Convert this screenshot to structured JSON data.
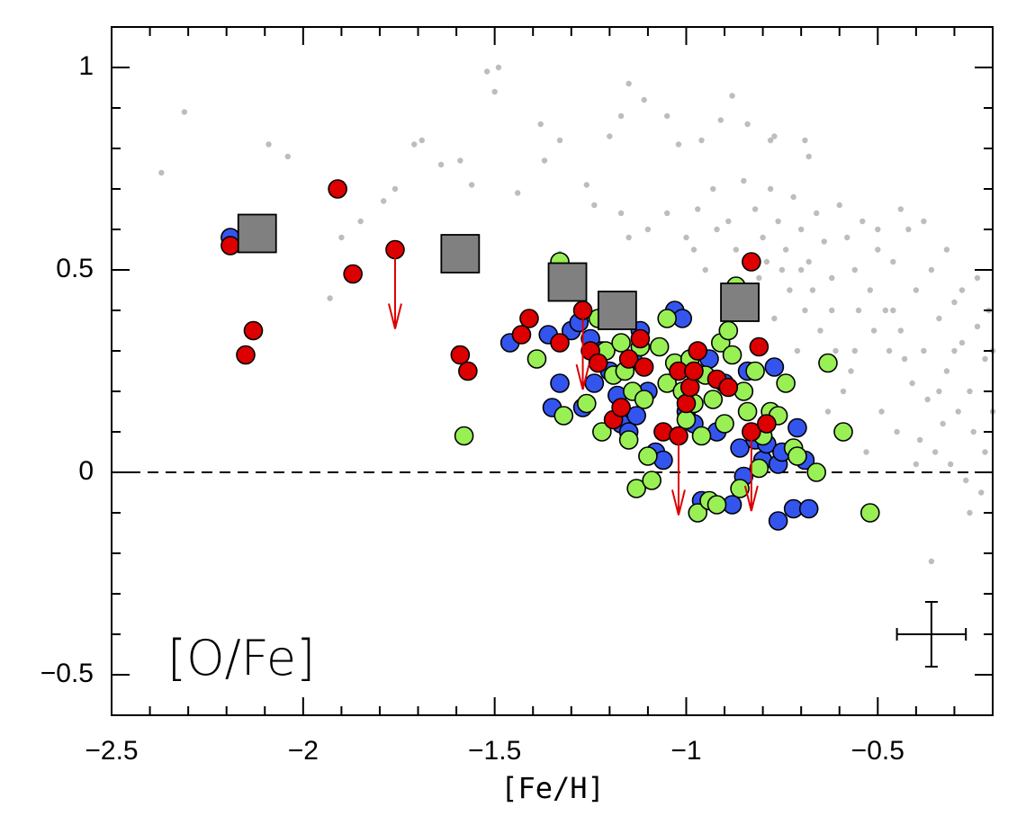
{
  "chart_data": {
    "type": "scatter",
    "xlabel": "[Fe/H]",
    "annotation": "[O/Fe]",
    "xlim": [
      -2.5,
      -0.2
    ],
    "ylim": [
      -0.6,
      1.1
    ],
    "xticks": [
      {
        "value": -2.5,
        "label": "−2.5"
      },
      {
        "value": -2,
        "label": "−2"
      },
      {
        "value": -1.5,
        "label": "−1.5"
      },
      {
        "value": -1,
        "label": "−1"
      },
      {
        "value": -0.5,
        "label": "−0.5"
      }
    ],
    "yticks": [
      {
        "value": -0.5,
        "label": "−0.5"
      },
      0,
      0.5,
      1
    ],
    "xminorticks": [
      -2.4,
      -2.3,
      -2.2,
      -2.1,
      -1.9,
      -1.8,
      -1.7,
      -1.6,
      -1.4,
      -1.3,
      -1.2,
      -1.1,
      -0.9,
      -0.8,
      -0.7,
      -0.6,
      -0.4,
      -0.3
    ],
    "yminorticks": [
      -0.4,
      -0.3,
      -0.2,
      -0.1,
      0.1,
      0.2,
      0.3,
      0.4,
      0.6,
      0.7,
      0.8,
      0.9
    ],
    "hline": 0,
    "series": [
      {
        "marker": "dot",
        "color": "#bdbdbd",
        "x": [
          -2.37,
          -2.31,
          -2.09,
          -2.04,
          -1.93,
          -1.9,
          -1.85,
          -1.79,
          -1.76,
          -1.71,
          -1.69,
          -1.64,
          -1.59,
          -1.56,
          -1.52,
          -1.49,
          -1.5,
          -1.44,
          -1.38,
          -1.37,
          -1.33,
          -1.26,
          -1.24,
          -1.2,
          -1.17,
          -1.15,
          -1.11,
          -1.05,
          -1.02,
          -0.96,
          -0.91,
          -0.88,
          -0.84,
          -0.78,
          -0.77,
          -0.69,
          -0.68,
          -1.33,
          -1.17,
          -1.15,
          -1.1,
          -1.05,
          -0.85,
          -0.82,
          -0.8,
          -0.78,
          -0.76,
          -0.74,
          -0.72,
          -0.7,
          -0.68,
          -0.66,
          -0.64,
          -0.62,
          -0.6,
          -0.58,
          -0.56,
          -0.54,
          -0.52,
          -0.5,
          -0.48,
          -0.46,
          -0.44,
          -0.42,
          -0.4,
          -0.38,
          -0.36,
          -0.34,
          -0.32,
          -0.3,
          -0.28,
          -0.26,
          -0.24,
          -0.22,
          -0.2,
          -0.21,
          -0.25,
          -0.29,
          -0.33,
          -0.37,
          -0.41,
          -0.45,
          -0.49,
          -0.53,
          -0.57,
          -0.61,
          -0.65,
          -0.69,
          -0.73,
          -0.77,
          -0.81,
          -0.87,
          -0.92,
          -0.95,
          -0.98,
          -0.35,
          -0.31,
          -0.27,
          -0.23,
          -0.22,
          -0.39,
          -0.43,
          -0.47,
          -0.51,
          -0.55,
          -0.59,
          -0.63,
          -0.67,
          -0.71,
          -0.75,
          -0.79,
          -0.83,
          -0.89,
          -0.93,
          -0.97,
          -1.0,
          -0.36,
          -0.26,
          -0.2,
          -0.24,
          -0.28,
          -0.32,
          -0.38,
          -0.44,
          -0.5,
          -0.4,
          -0.3,
          -0.34,
          -0.46,
          -0.56,
          -0.62,
          -0.7
        ],
        "y": [
          0.74,
          0.89,
          0.81,
          0.78,
          0.43,
          0.58,
          0.62,
          0.67,
          0.7,
          0.81,
          0.82,
          0.76,
          0.77,
          0.71,
          0.99,
          1.0,
          0.94,
          0.69,
          0.86,
          0.77,
          0.82,
          0.71,
          0.66,
          0.83,
          0.88,
          0.96,
          0.92,
          0.88,
          0.81,
          0.82,
          0.87,
          0.93,
          0.86,
          0.82,
          0.83,
          0.82,
          0.78,
          0.54,
          0.64,
          0.58,
          0.6,
          0.64,
          0.72,
          0.65,
          0.58,
          0.7,
          0.62,
          0.55,
          0.68,
          0.6,
          0.52,
          0.64,
          0.57,
          0.48,
          0.66,
          0.58,
          0.5,
          0.62,
          0.45,
          0.55,
          0.4,
          0.52,
          0.35,
          0.6,
          0.45,
          0.3,
          0.5,
          0.38,
          0.25,
          0.42,
          0.32,
          0.2,
          0.36,
          0.28,
          0.15,
          0.4,
          0.1,
          0.15,
          0.12,
          0.18,
          0.22,
          0.1,
          0.15,
          0.05,
          0.25,
          0.3,
          0.35,
          0.4,
          0.45,
          0.38,
          0.48,
          0.55,
          0.6,
          0.5,
          0.55,
          0.05,
          0.02,
          -0.02,
          -0.05,
          0.05,
          0.08,
          0.28,
          0.3,
          0.35,
          0.4,
          0.2,
          0.15,
          0.45,
          0.3,
          0.5,
          0.52,
          0.4,
          0.62,
          0.7,
          0.65,
          0.58,
          -0.22,
          -0.1,
          0.3,
          0.48,
          0.45,
          0.55,
          0.62,
          0.65,
          0.6,
          0.02,
          0.3,
          0.2,
          0.4,
          0.3,
          0.4,
          0.5
        ]
      },
      {
        "marker": "circle",
        "color": "#3355ee",
        "x": [
          -2.19,
          -1.46,
          -1.35,
          -1.33,
          -1.3,
          -1.28,
          -1.25,
          -1.22,
          -1.2,
          -1.18,
          -1.17,
          -1.15,
          -1.13,
          -1.12,
          -1.1,
          -1.08,
          -1.06,
          -1.03,
          -1.01,
          -1.0,
          -0.98,
          -0.96,
          -0.94,
          -0.92,
          -0.9,
          -0.88,
          -0.86,
          -0.85,
          -0.84,
          -0.82,
          -0.8,
          -0.79,
          -0.77,
          -0.76,
          -0.75,
          -0.72,
          -0.71,
          -0.69,
          -0.68,
          -0.76,
          -1.36,
          -1.24,
          -1.27,
          -1.14
        ],
        "y": [
          0.58,
          0.32,
          0.16,
          0.22,
          0.35,
          0.37,
          0.33,
          0.3,
          0.25,
          0.19,
          0.12,
          0.1,
          0.14,
          0.35,
          0.2,
          0.05,
          0.03,
          0.4,
          0.38,
          0.15,
          0.12,
          -0.07,
          0.28,
          0.1,
          0.22,
          -0.08,
          0.06,
          -0.01,
          0.25,
          0.08,
          0.03,
          0.07,
          0.26,
          0.02,
          0.05,
          -0.09,
          0.11,
          0.03,
          -0.09,
          -0.12,
          0.34,
          0.22,
          0.16,
          0.28
        ]
      },
      {
        "marker": "circle",
        "color": "#99f055",
        "x": [
          -1.58,
          -1.39,
          -1.33,
          -1.32,
          -1.26,
          -1.23,
          -1.21,
          -1.19,
          -1.17,
          -1.15,
          -1.14,
          -1.13,
          -1.11,
          -1.09,
          -1.1,
          -1.07,
          -1.05,
          -1.03,
          -1.01,
          -1.0,
          -0.99,
          -0.98,
          -0.97,
          -0.96,
          -0.95,
          -0.94,
          -0.93,
          -0.92,
          -0.91,
          -0.9,
          -0.89,
          -0.88,
          -0.87,
          -0.86,
          -0.85,
          -0.84,
          -0.82,
          -0.81,
          -0.8,
          -0.78,
          -0.76,
          -0.74,
          -0.72,
          -0.71,
          -0.66,
          -0.63,
          -0.59,
          -0.52,
          -1.12,
          -1.05,
          -1.22,
          -1.16
        ],
        "y": [
          0.09,
          0.28,
          0.52,
          0.14,
          0.17,
          0.38,
          0.3,
          0.24,
          0.32,
          0.08,
          0.2,
          -0.04,
          0.18,
          -0.02,
          0.04,
          0.31,
          0.22,
          0.27,
          0.2,
          0.13,
          0.28,
          0.17,
          -0.1,
          0.09,
          0.24,
          -0.07,
          0.18,
          -0.08,
          0.32,
          0.12,
          0.35,
          0.29,
          0.46,
          -0.04,
          0.2,
          0.15,
          0.25,
          0.01,
          0.09,
          0.15,
          0.14,
          0.22,
          0.06,
          0.04,
          0.0,
          0.27,
          0.1,
          -0.1,
          0.31,
          0.38,
          0.1,
          0.25
        ]
      },
      {
        "marker": "circle",
        "color": "#dd0000",
        "x": [
          -2.19,
          -2.15,
          -2.13,
          -1.91,
          -1.87,
          -1.76,
          -1.59,
          -1.57,
          -1.41,
          -1.43,
          -1.33,
          -1.27,
          -1.25,
          -1.23,
          -1.19,
          -1.17,
          -1.15,
          -1.12,
          -1.11,
          -1.06,
          -1.02,
          -1.02,
          -1.0,
          -0.99,
          -0.98,
          -0.97,
          -0.92,
          -0.89,
          -0.83,
          -0.83,
          -0.81,
          -0.79
        ],
        "y": [
          0.56,
          0.29,
          0.35,
          0.7,
          0.49,
          0.55,
          0.29,
          0.25,
          0.38,
          0.34,
          0.32,
          0.4,
          0.3,
          0.27,
          0.13,
          0.16,
          0.28,
          0.33,
          0.26,
          0.1,
          0.09,
          0.25,
          0.17,
          0.21,
          0.25,
          0.3,
          0.23,
          0.21,
          0.52,
          0.1,
          0.31,
          0.12
        ]
      },
      {
        "marker": "square",
        "color": "#808080",
        "x": [
          -2.12,
          -1.59,
          -1.31,
          -1.18,
          -0.86
        ],
        "y": [
          0.59,
          0.54,
          0.47,
          0.4,
          0.42
        ]
      },
      {
        "marker": "arrow",
        "color": "#dd0000",
        "x": [
          -1.76,
          -1.27,
          -1.02,
          -0.83
        ],
        "y": [
          0.55,
          0.4,
          0.09,
          0.1
        ]
      }
    ],
    "error_bar": {
      "x": -0.36,
      "y": -0.4,
      "xerr": 0.09,
      "yerr": 0.08
    }
  }
}
